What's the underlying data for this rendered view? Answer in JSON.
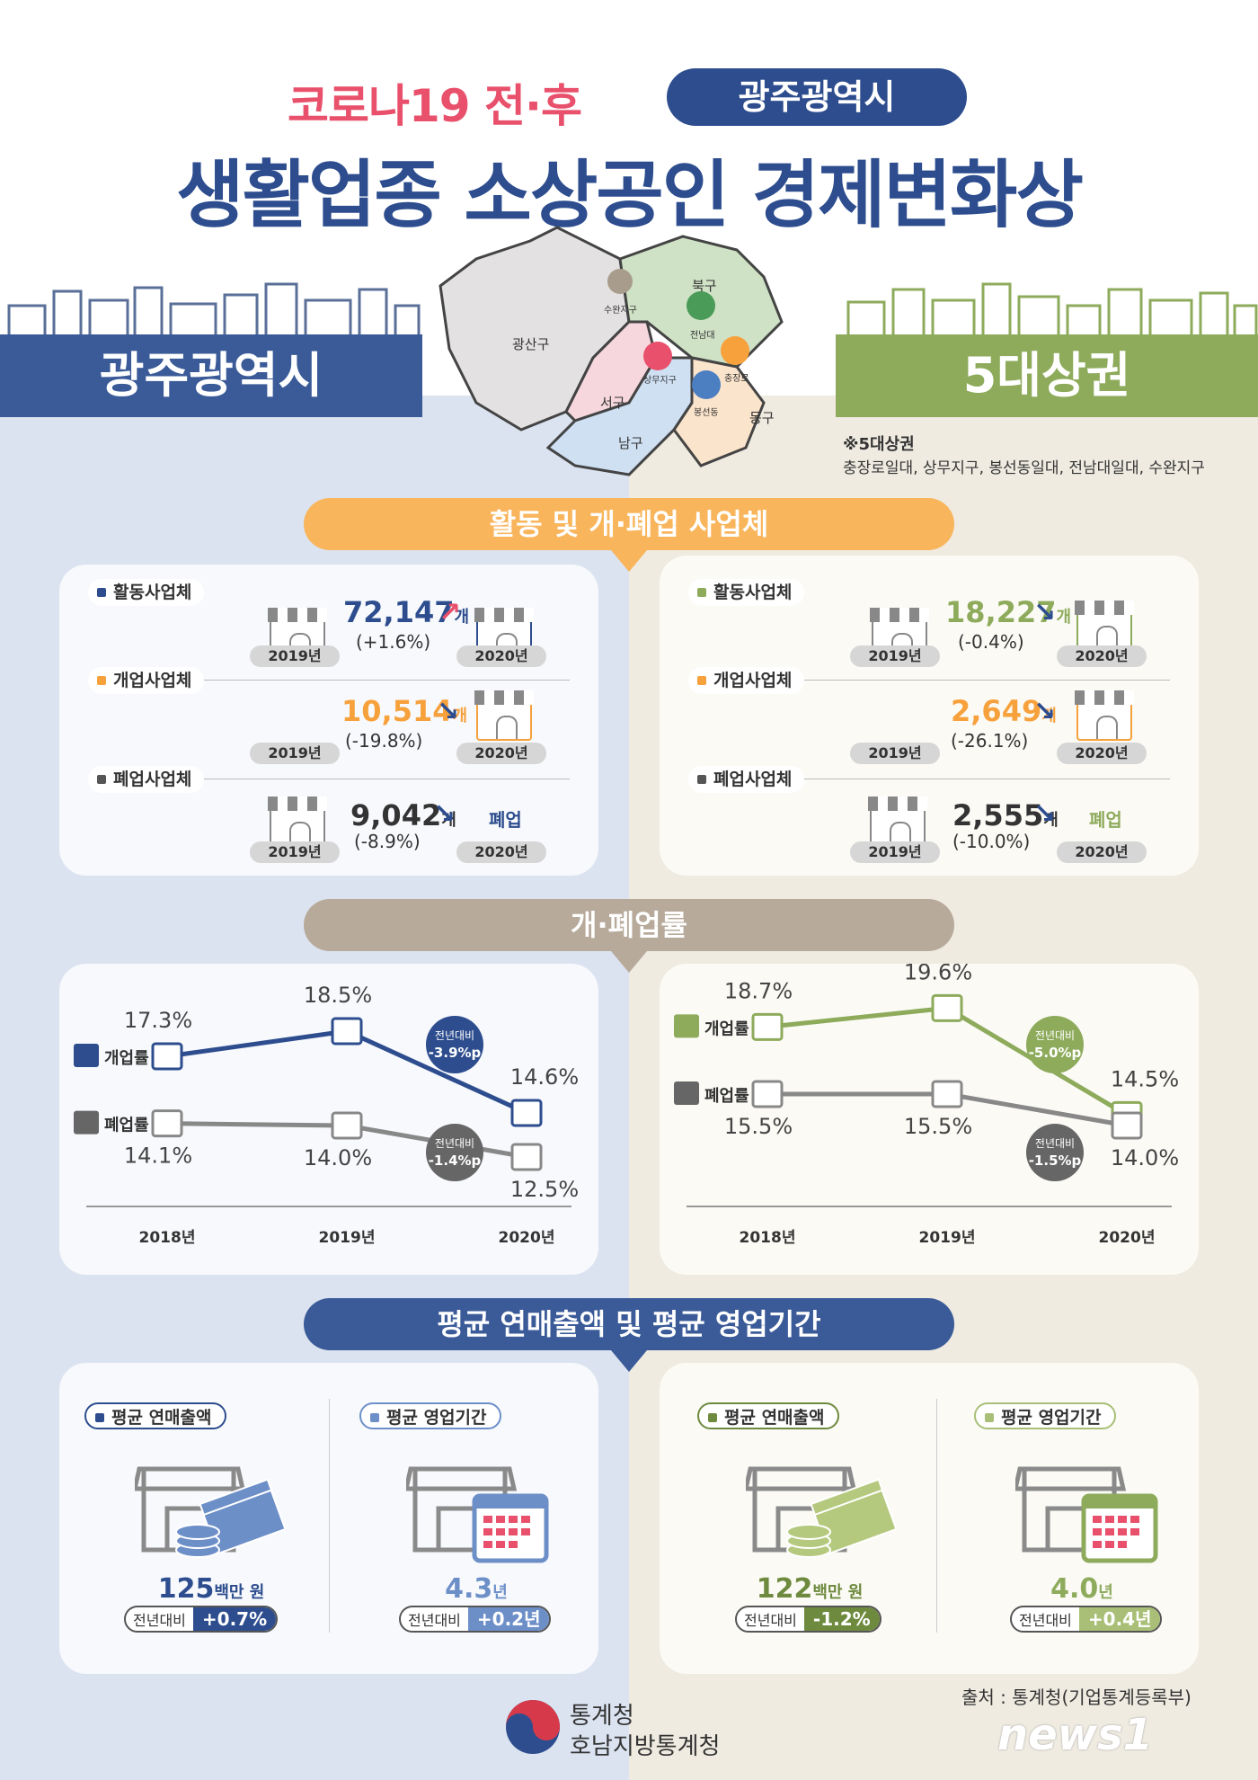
{
  "header": {
    "subtitle": "코로나19 전·후",
    "region": "광주광역시",
    "title": "생활업종 소상공인 경제변화상"
  },
  "bands": {
    "left": "광주광역시",
    "right": "5대상권"
  },
  "map": {
    "districts": [
      "광산구",
      "북구",
      "서구",
      "남구",
      "동구"
    ],
    "areas": [
      "수완지구",
      "전남대",
      "상무지구",
      "충장로",
      "봉선동"
    ]
  },
  "note": {
    "title": "※5대상권",
    "body": "충장로일대, 상무지구, 봉선동일대, 전남대일대, 수완지구"
  },
  "sections": {
    "s1": "활동 및 개·폐업 사업체",
    "s2": "개·폐업률",
    "s3": "평균 연매출액 및 평균 영업기간"
  },
  "labels": {
    "active": "활동사업체",
    "open": "개업사업체",
    "close": "폐업사업체",
    "y2019": "2019년",
    "y2020": "2020년",
    "closed_word": "폐업",
    "open_rate": "개업률",
    "close_rate": "폐업률",
    "vs_prev": "전년대비",
    "avg_sales": "평균 연매출액",
    "avg_period": "평균 영업기간"
  },
  "left": {
    "active": {
      "value": "72,147",
      "unit": "개",
      "change": "(+1.6%)"
    },
    "open": {
      "value": "10,514",
      "unit": "개",
      "change": "(-19.8%)"
    },
    "close": {
      "value": "9,042",
      "unit": "개",
      "change": "(-8.9%)"
    },
    "sales": {
      "value": "125",
      "unit": "백만 원",
      "change": "+0.7%"
    },
    "period": {
      "value": "4.3",
      "unit": "년",
      "change": "+0.2년"
    }
  },
  "right": {
    "active": {
      "value": "18,227",
      "unit": "개",
      "change": "(-0.4%)"
    },
    "open": {
      "value": "2,649",
      "unit": "개",
      "change": "(-26.1%)"
    },
    "close": {
      "value": "2,555",
      "unit": "개",
      "change": "(-10.0%)"
    },
    "sales": {
      "value": "122",
      "unit": "백만 원",
      "change": "-1.2%"
    },
    "period": {
      "value": "4.0",
      "unit": "년",
      "change": "+0.4년"
    }
  },
  "chart_data": [
    {
      "type": "line",
      "categories": [
        "2018년",
        "2019년",
        "2020년"
      ],
      "series": [
        {
          "name": "개업률",
          "values": [
            17.3,
            18.5,
            14.6
          ]
        },
        {
          "name": "폐업률",
          "values": [
            14.1,
            14.0,
            12.5
          ]
        }
      ],
      "annotations": [
        "전년대비 -3.9%p",
        "전년대비 -1.4%p"
      ],
      "ylim": [
        11,
        20
      ]
    },
    {
      "type": "line",
      "categories": [
        "2018년",
        "2019년",
        "2020년"
      ],
      "series": [
        {
          "name": "개업률",
          "values": [
            18.7,
            19.6,
            14.5
          ]
        },
        {
          "name": "폐업률",
          "values": [
            15.5,
            15.5,
            14.0
          ]
        }
      ],
      "annotations": [
        "전년대비 -5.0%p",
        "전년대비 -1.5%p"
      ],
      "ylim": [
        11,
        20
      ]
    }
  ],
  "footer": {
    "source": "출처 : 통계청(기업통계등록부)",
    "org1": "통계청",
    "org2": "호남지방통계청",
    "watermark": "news1"
  },
  "colors": {
    "blue": "#2d4d8e",
    "green": "#8eab5c",
    "orange": "#f7a13c",
    "gray": "#666666",
    "pink": "#e8506b"
  }
}
